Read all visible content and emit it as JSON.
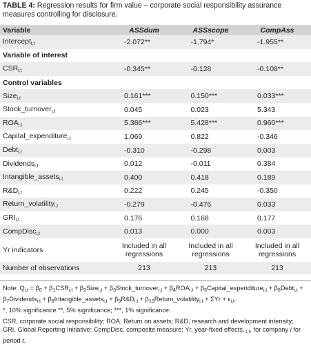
{
  "caption": {
    "label": "TABLE 4:",
    "text": " Regression results for firm value – corporate social responsibility assurance measures controlling for disclosure."
  },
  "header": {
    "variable": "Variable",
    "models": [
      "ASSdum",
      "ASSscope",
      "CompAss"
    ]
  },
  "rows": [
    {
      "type": "row",
      "label": "Intercept",
      "sub": "i,t",
      "values": [
        "-2.072**",
        "-1.794*",
        "-1.955**"
      ],
      "shade": true
    },
    {
      "type": "section",
      "label": "Variable of interest",
      "shade": false
    },
    {
      "type": "row",
      "label": "CSR",
      "sub": "i,t",
      "values": [
        "-0.345**",
        "-0.128",
        "-0.108**"
      ],
      "shade": true
    },
    {
      "type": "section",
      "label": "Control variables",
      "shade": false
    },
    {
      "type": "row",
      "label": "Size",
      "sub": "i,t",
      "values": [
        "0.161***",
        "0.150***",
        "0.033***"
      ],
      "shade": true
    },
    {
      "type": "row",
      "label": "Stock_turnover",
      "sub": "i,t",
      "values": [
        "0.045",
        "0.023",
        "5.343"
      ],
      "shade": false
    },
    {
      "type": "row",
      "label": "ROA",
      "sub": "i,t",
      "values": [
        "5.386***",
        "5.428***",
        "0.960***"
      ],
      "shade": true
    },
    {
      "type": "row",
      "label": "Capital_expenditure",
      "sub": "i,t",
      "values": [
        "1.069",
        "0.822",
        "-0.346"
      ],
      "shade": false
    },
    {
      "type": "row",
      "label": "Debt",
      "sub": "i,t",
      "values": [
        "-0.310",
        "-0.298",
        "0.003"
      ],
      "shade": true
    },
    {
      "type": "row",
      "label": "Dividends",
      "sub": "i,t",
      "values": [
        "0.012",
        "-0.011",
        "0.384"
      ],
      "shade": false
    },
    {
      "type": "row",
      "label": "Intangible_assets",
      "sub": "i,t",
      "values": [
        "0.400",
        "0.418",
        "0.189"
      ],
      "shade": true
    },
    {
      "type": "row",
      "label": "R&D",
      "sub": "i,t",
      "values": [
        "0.222",
        "0.245",
        "-0.350"
      ],
      "shade": false
    },
    {
      "type": "row",
      "label": "Return_volatility",
      "sub": "i,t",
      "values": [
        "-0.279",
        "-0.476",
        "0.033"
      ],
      "shade": true
    },
    {
      "type": "row",
      "label": "GRI",
      "sub": "i,t",
      "values": [
        "0.176",
        "0.168",
        "0.177"
      ],
      "shade": false
    },
    {
      "type": "row",
      "label": "CompDisc",
      "sub": "i,t",
      "values": [
        "0.013",
        "0.000",
        "0.003"
      ],
      "shade": true
    }
  ],
  "yr": {
    "label": "Yr indicators",
    "values": [
      "Included in all regressions",
      "Included in all regressions",
      "Included in all regressions"
    ]
  },
  "obs": {
    "label": "Number of observations",
    "values": [
      "213",
      "213",
      "213"
    ]
  },
  "notes": {
    "note1": "Note: Q",
    "note1_rest": "i,t = β0 + β1CSRi,t + β2Sizei,t + β3Stock_turnoveri,t + β4ROAi,t + β5Capital_expenditurei,t + β6Debti,t + β7Dividendsi,t + β8Intangible_assetsi,t + β9R&Di,t + β10Return_volatilityi,t + ΣYr + εi,t.",
    "note2": "*, 10% significance **, 5% significance; ***, 1% significance.",
    "note3": "CSR, corporate social responsibility; ROA, Return on assets; R&D, research and development intensity; GRI, Global Reporting Initiative; CompDisc, composite measure; Yr, year-fixed effects, i,t, for company i for period t."
  }
}
